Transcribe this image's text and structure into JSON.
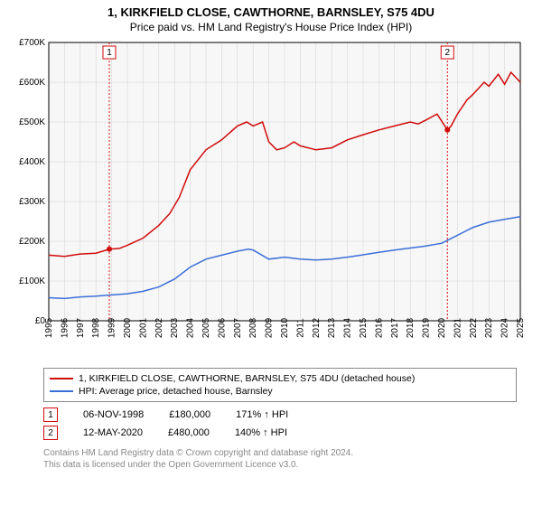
{
  "title": "1, KIRKFIELD CLOSE, CAWTHORNE, BARNSLEY, S75 4DU",
  "subtitle": "Price paid vs. HM Land Registry's House Price Index (HPI)",
  "chart": {
    "type": "line",
    "background_color": "#ffffff",
    "plot_background_color": "#f7f7f7",
    "grid_color": "#d0d0d0",
    "axis_color": "#000000",
    "x": {
      "min": 1995,
      "max": 2025,
      "ticks": [
        1995,
        1996,
        1997,
        1998,
        1999,
        2000,
        2001,
        2002,
        2003,
        2004,
        2005,
        2006,
        2007,
        2008,
        2009,
        2010,
        2011,
        2012,
        2013,
        2014,
        2015,
        2016,
        2017,
        2018,
        2019,
        2020,
        2021,
        2022,
        2023,
        2024,
        2025
      ],
      "label_rotation": -90,
      "label_fontsize": 10
    },
    "y": {
      "min": 0,
      "max": 700000,
      "ticks": [
        0,
        100000,
        200000,
        300000,
        400000,
        500000,
        600000,
        700000
      ],
      "tick_labels": [
        "£0",
        "£100K",
        "£200K",
        "£300K",
        "£400K",
        "£500K",
        "£600K",
        "£700K"
      ],
      "label_fontsize": 10
    },
    "series": [
      {
        "id": "price_paid",
        "label": "1, KIRKFIELD CLOSE, CAWTHORNE, BARNSLEY, S75 4DU (detached house)",
        "color": "#d10a0a",
        "line_width": 1.5,
        "points": [
          [
            1995,
            165000
          ],
          [
            1996,
            162000
          ],
          [
            1997,
            168000
          ],
          [
            1998,
            170000
          ],
          [
            1998.85,
            180000
          ],
          [
            1999.5,
            182000
          ],
          [
            2000,
            190000
          ],
          [
            2001,
            208000
          ],
          [
            2002,
            240000
          ],
          [
            2002.7,
            270000
          ],
          [
            2003.3,
            310000
          ],
          [
            2004,
            380000
          ],
          [
            2005,
            430000
          ],
          [
            2006,
            455000
          ],
          [
            2007,
            490000
          ],
          [
            2007.6,
            500000
          ],
          [
            2008,
            490000
          ],
          [
            2008.6,
            500000
          ],
          [
            2009,
            450000
          ],
          [
            2009.5,
            430000
          ],
          [
            2010,
            435000
          ],
          [
            2010.6,
            450000
          ],
          [
            2011,
            440000
          ],
          [
            2012,
            430000
          ],
          [
            2013,
            435000
          ],
          [
            2014,
            455000
          ],
          [
            2015,
            468000
          ],
          [
            2016,
            480000
          ],
          [
            2017,
            490000
          ],
          [
            2018,
            500000
          ],
          [
            2018.5,
            495000
          ],
          [
            2019,
            505000
          ],
          [
            2019.7,
            520000
          ],
          [
            2020.36,
            480000
          ],
          [
            2020.6,
            490000
          ],
          [
            2021,
            520000
          ],
          [
            2021.6,
            555000
          ],
          [
            2022,
            570000
          ],
          [
            2022.7,
            600000
          ],
          [
            2023,
            590000
          ],
          [
            2023.6,
            620000
          ],
          [
            2024,
            595000
          ],
          [
            2024.4,
            625000
          ],
          [
            2025,
            600000
          ]
        ]
      },
      {
        "id": "hpi",
        "label": "HPI: Average price, detached house, Barnsley",
        "color": "#3a6fd8",
        "line_width": 1.2,
        "points": [
          [
            1995,
            58000
          ],
          [
            1996,
            56000
          ],
          [
            1997,
            60000
          ],
          [
            1998,
            62000
          ],
          [
            1999,
            65000
          ],
          [
            2000,
            68000
          ],
          [
            2001,
            74000
          ],
          [
            2002,
            85000
          ],
          [
            2003,
            105000
          ],
          [
            2004,
            135000
          ],
          [
            2005,
            155000
          ],
          [
            2006,
            165000
          ],
          [
            2007,
            175000
          ],
          [
            2007.7,
            180000
          ],
          [
            2008,
            178000
          ],
          [
            2009,
            155000
          ],
          [
            2010,
            160000
          ],
          [
            2011,
            155000
          ],
          [
            2012,
            153000
          ],
          [
            2013,
            155000
          ],
          [
            2014,
            160000
          ],
          [
            2015,
            166000
          ],
          [
            2016,
            172000
          ],
          [
            2017,
            178000
          ],
          [
            2018,
            183000
          ],
          [
            2019,
            188000
          ],
          [
            2020,
            195000
          ],
          [
            2021,
            215000
          ],
          [
            2022,
            235000
          ],
          [
            2023,
            248000
          ],
          [
            2024,
            255000
          ],
          [
            2025,
            262000
          ]
        ]
      }
    ],
    "markers": [
      {
        "id": "1",
        "x": 1998.85,
        "y": 180000,
        "line_color": "#d10a0a",
        "dot_color": "#d10a0a"
      },
      {
        "id": "2",
        "x": 2020.36,
        "y": 480000,
        "line_color": "#d10a0a",
        "dot_color": "#d10a0a"
      }
    ]
  },
  "legend": {
    "series": [
      {
        "color": "#d10a0a",
        "label": "1, KIRKFIELD CLOSE, CAWTHORNE, BARNSLEY, S75 4DU (detached house)"
      },
      {
        "color": "#3a6fd8",
        "label": "HPI: Average price, detached house, Barnsley"
      }
    ]
  },
  "transactions": [
    {
      "marker": "1",
      "marker_color": "#d10a0a",
      "date": "06-NOV-1998",
      "price": "£180,000",
      "hpi_delta": "171% ↑ HPI"
    },
    {
      "marker": "2",
      "marker_color": "#d10a0a",
      "date": "12-MAY-2020",
      "price": "£480,000",
      "hpi_delta": "140% ↑ HPI"
    }
  ],
  "attribution_line1": "Contains HM Land Registry data © Crown copyright and database right 2024.",
  "attribution_line2": "This data is licensed under the Open Government Licence v3.0."
}
